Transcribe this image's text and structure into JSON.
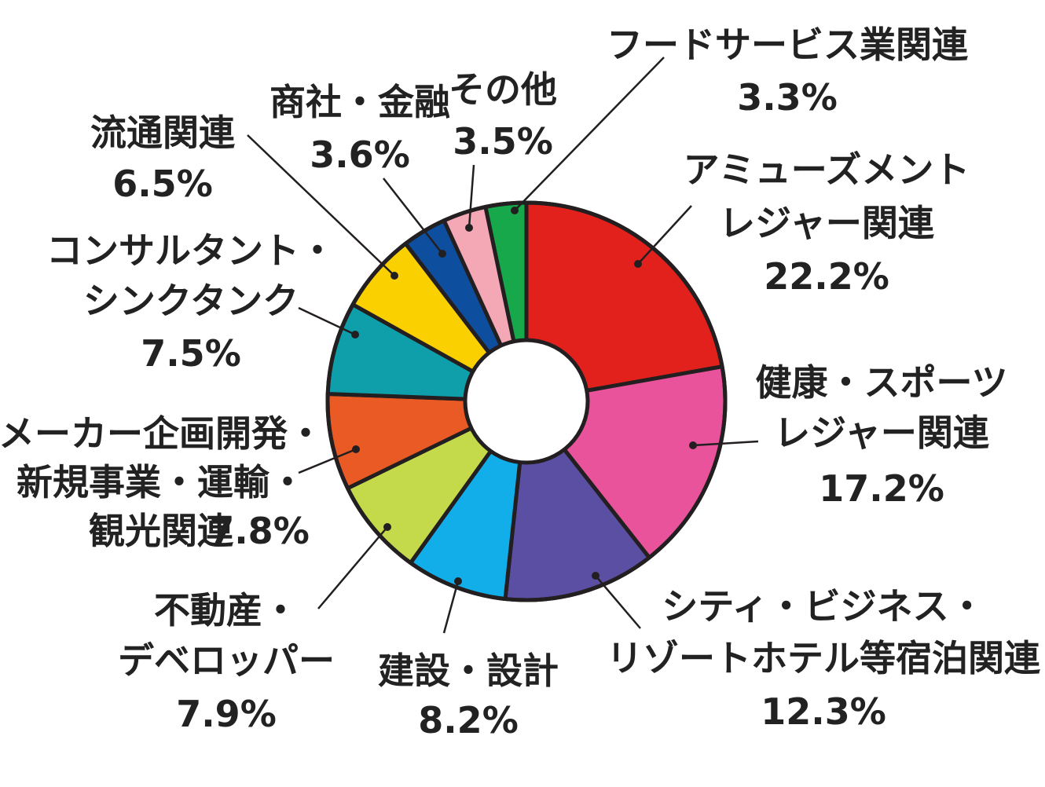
{
  "chart_data": {
    "type": "pie",
    "donut": true,
    "unit": "%",
    "slices": [
      {
        "name": "アミューズメント レジャー関連",
        "lines": [
          "アミューズメント",
          "レジャー関連"
        ],
        "pct_label": "22.2%",
        "value": 22.2,
        "color": "#E3211C"
      },
      {
        "name": "健康・スポーツ レジャー関連",
        "lines": [
          "健康・スポーツ",
          "レジャー関連"
        ],
        "pct_label": "17.2%",
        "value": 17.2,
        "color": "#E8539B"
      },
      {
        "name": "シティ・ビジネス・リゾートホテル等宿泊関連",
        "lines": [
          "シティ・ビジネス・",
          "リゾートホテル等宿泊関連"
        ],
        "pct_label": "12.3%",
        "value": 12.3,
        "color": "#5B4FA3"
      },
      {
        "name": "建設・設計",
        "lines": [
          "建設・設計"
        ],
        "pct_label": "8.2%",
        "value": 8.2,
        "color": "#12AEEA"
      },
      {
        "name": "不動産・デベロッパー",
        "lines": [
          "不動産・",
          "デベロッパー"
        ],
        "pct_label": "7.9%",
        "value": 7.9,
        "color": "#C4DA4A"
      },
      {
        "name": "メーカー企画開発・新規事業・運輸・観光関連",
        "lines": [
          "メーカー企画開発・",
          "新規事業・運輸・",
          "観光関連"
        ],
        "pct_label": "7.8%",
        "value": 7.8,
        "color": "#EA5A24"
      },
      {
        "name": "コンサルタント・シンクタンク",
        "lines": [
          "コンサルタント・",
          "シンクタンク"
        ],
        "pct_label": "7.5%",
        "value": 7.5,
        "color": "#0E9FAA"
      },
      {
        "name": "流通関連",
        "lines": [
          "流通関連"
        ],
        "pct_label": "6.5%",
        "value": 6.5,
        "color": "#FAD000"
      },
      {
        "name": "商社・金融",
        "lines": [
          "商社・金融"
        ],
        "pct_label": "3.6%",
        "value": 3.6,
        "color": "#0E4E9E"
      },
      {
        "name": "その他",
        "lines": [
          "その他"
        ],
        "pct_label": "3.5%",
        "value": 3.5,
        "color": "#F4A8B6"
      },
      {
        "name": "フードサービス業関連",
        "lines": [
          "フードサービス業関連"
        ],
        "pct_label": "3.3%",
        "value": 3.3,
        "color": "#16A84A"
      }
    ]
  }
}
